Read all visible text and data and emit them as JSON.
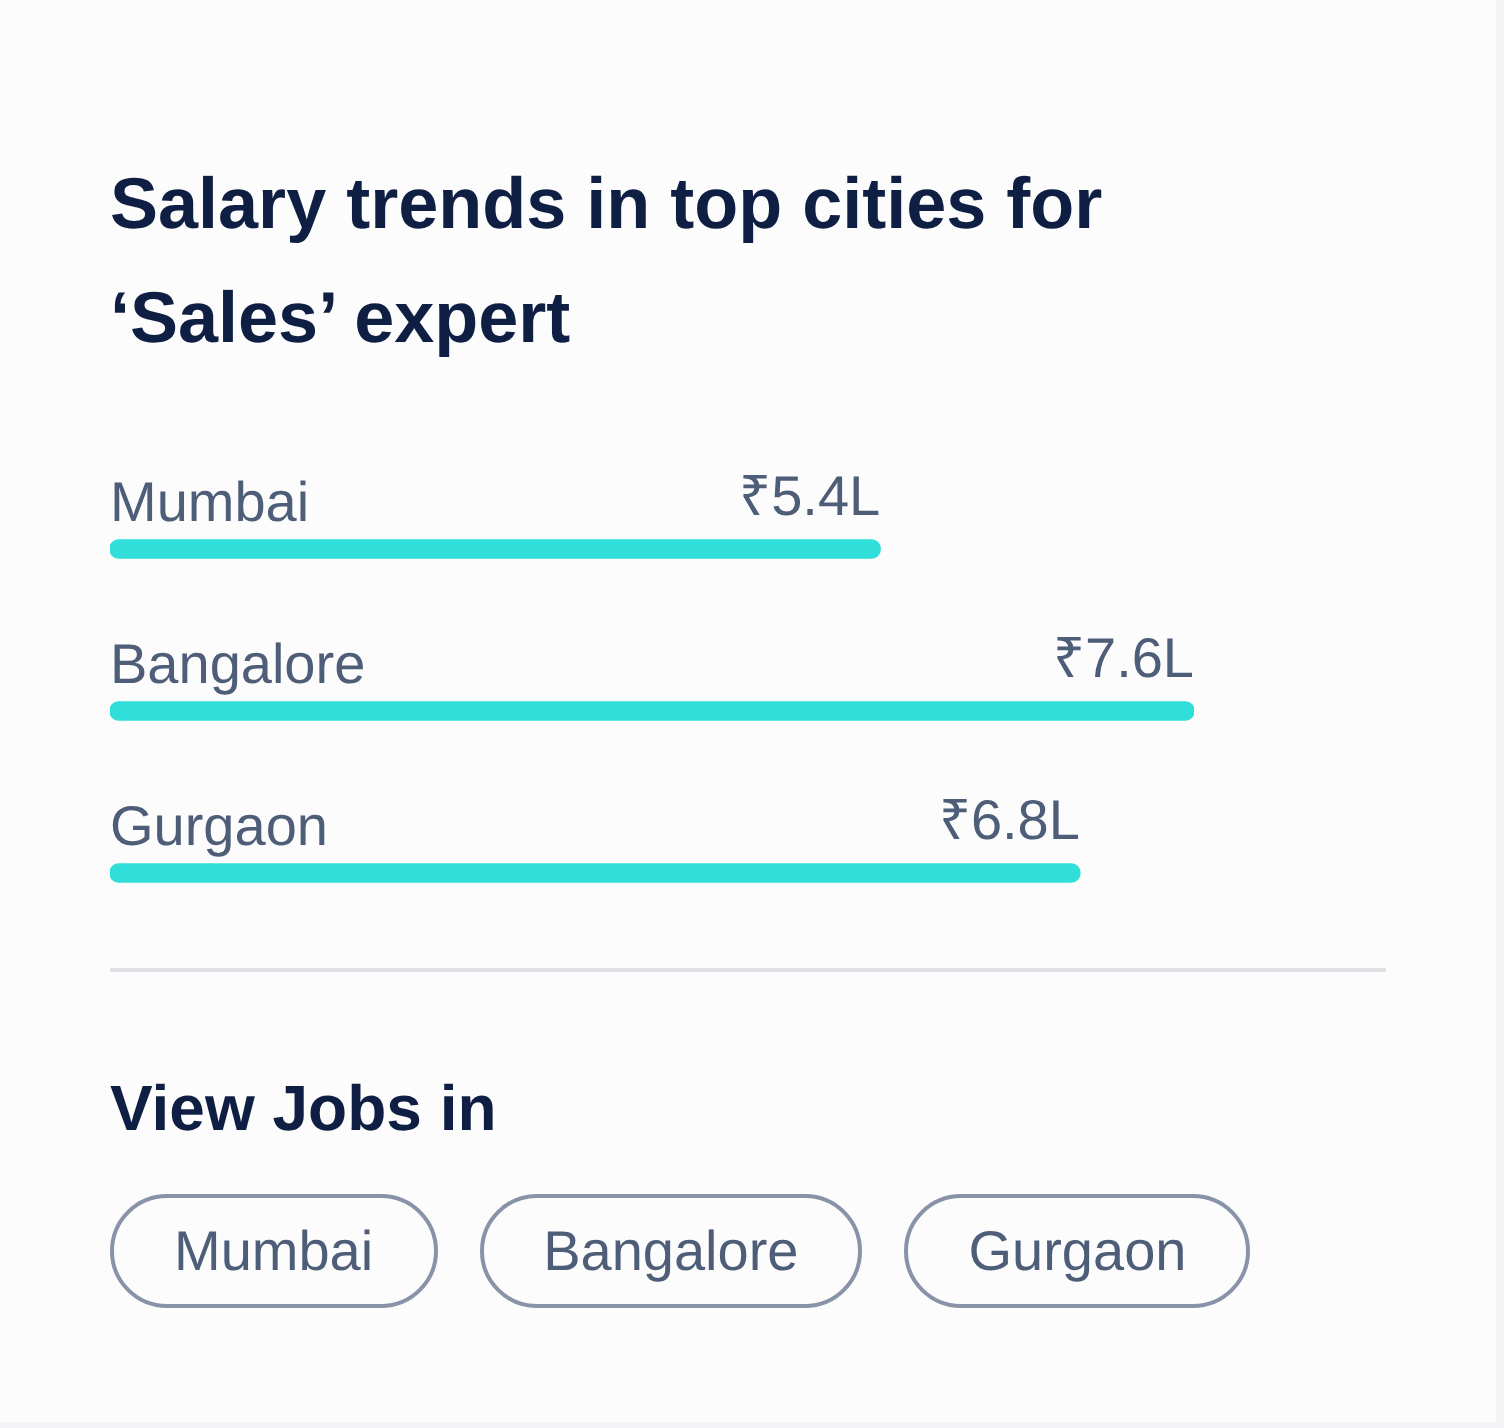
{
  "chart_data": [
    {
      "type": "bar",
      "orientation": "horizontal",
      "title": "Salary trends in top cities for ‘Sales’ expert",
      "categories": [
        "Mumbai",
        "Bangalore",
        "Gurgaon"
      ],
      "values": [
        5.4,
        7.6,
        6.8
      ],
      "value_labels": [
        "₹5.4L",
        "₹7.6L",
        "₹6.8L"
      ],
      "color": "#31dfda",
      "xlim": [
        0,
        7.6
      ],
      "tick_labels": "y"
    },
    {
      "type": "other",
      "title": "View Jobs in",
      "annotations": [
        "Mumbai",
        "Bangalore",
        "Gurgaon"
      ]
    }
  ]
}
